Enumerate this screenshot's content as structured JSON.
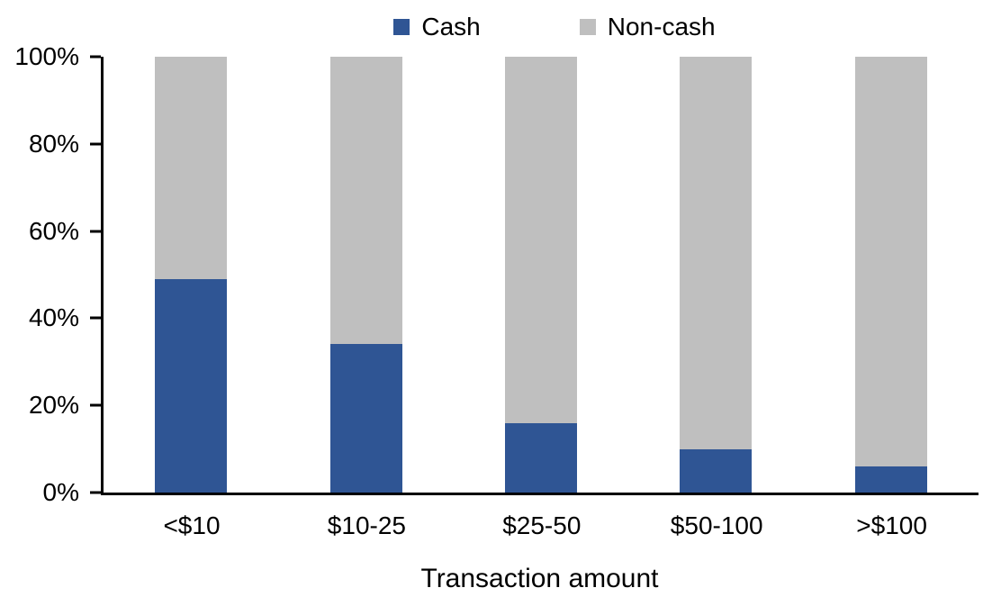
{
  "chart_data": {
    "type": "bar",
    "variant": "100-percent-stacked-column",
    "title": "",
    "xlabel": "Transaction amount",
    "ylabel": "",
    "categories": [
      "<$10",
      "$10-25",
      "$25-50",
      "$50-100",
      ">$100"
    ],
    "series": [
      {
        "name": "Cash",
        "color": "#2F5594",
        "values": [
          49,
          34,
          16,
          10,
          6
        ]
      },
      {
        "name": "Non-cash",
        "color": "#BFBFBF",
        "values": [
          51,
          66,
          84,
          90,
          94
        ]
      }
    ],
    "ylim": [
      0,
      100
    ],
    "y_ticks": [
      "0%",
      "20%",
      "40%",
      "60%",
      "80%",
      "100%"
    ],
    "grid": false,
    "legend_position": "top-center",
    "background_color": "#FFFFFF",
    "axis_color": "#000000"
  }
}
